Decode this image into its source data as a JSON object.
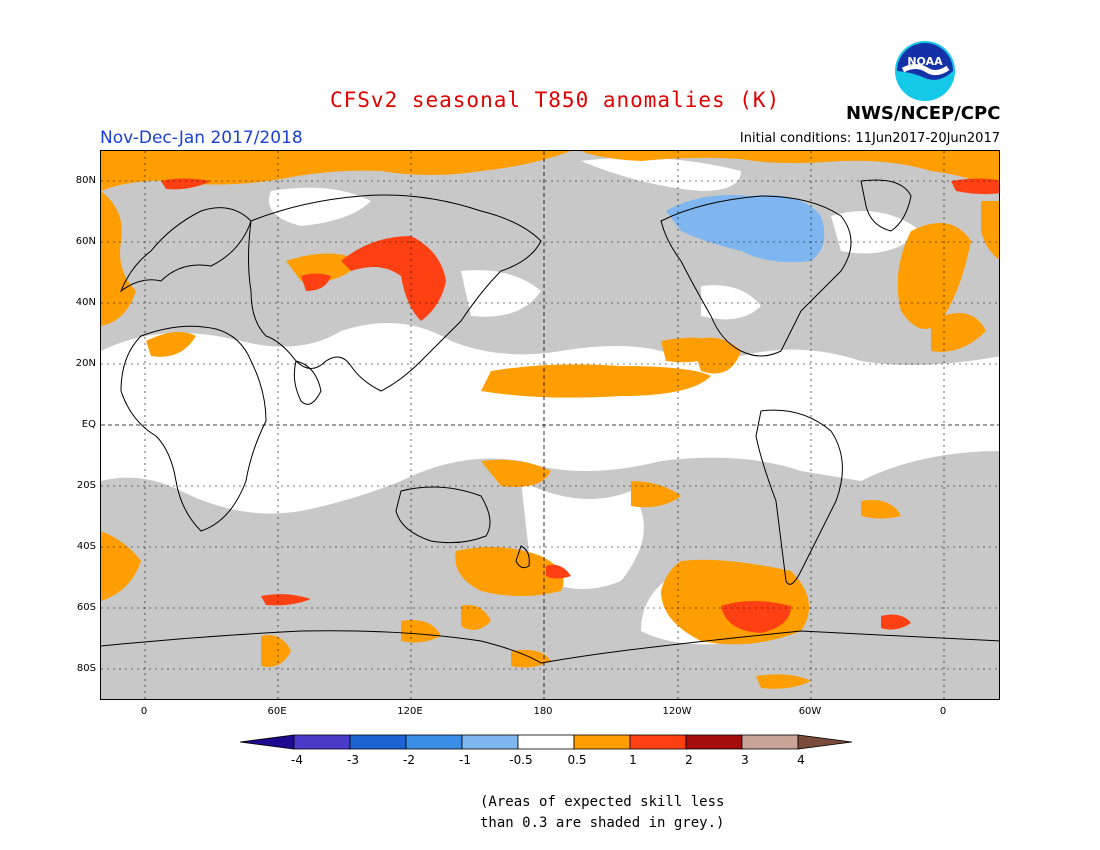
{
  "header": {
    "title": "CFSv2 seasonal T850 anomalies (K)",
    "title_color": "#e00000",
    "org": "NWS/NCEP/CPC",
    "season": "Nov-Dec-Jan 2017/2018",
    "season_color": "#1a3fd6",
    "initial_conditions": "Initial conditions: 11Jun2017-20Jun2017"
  },
  "logo": {
    "text": "NOAA",
    "icon": "noaa-logo-icon"
  },
  "map": {
    "lat_labels": [
      "80N",
      "60N",
      "40N",
      "20N",
      "EQ",
      "20S",
      "40S",
      "60S",
      "80S"
    ],
    "lon_labels": [
      "0",
      "60E",
      "120E",
      "180",
      "120W",
      "60W",
      "0"
    ]
  },
  "legend": {
    "labels": [
      "-4",
      "-3",
      "-2",
      "-1",
      "-0.5",
      "0.5",
      "1",
      "2",
      "3",
      "4"
    ],
    "colors": [
      "#1c0b8e",
      "#4a3cc9",
      "#1e63d4",
      "#3b8ee6",
      "#7fb6ef",
      "#ffffff",
      "#ff9e00",
      "#ff4012",
      "#a50c0c",
      "#c9a597",
      "#7a4a3a"
    ],
    "skill_color": "#c8c8c8"
  },
  "note": {
    "line1": "(Areas of expected skill less",
    "line2": "than 0.3 are shaded in grey.)"
  }
}
